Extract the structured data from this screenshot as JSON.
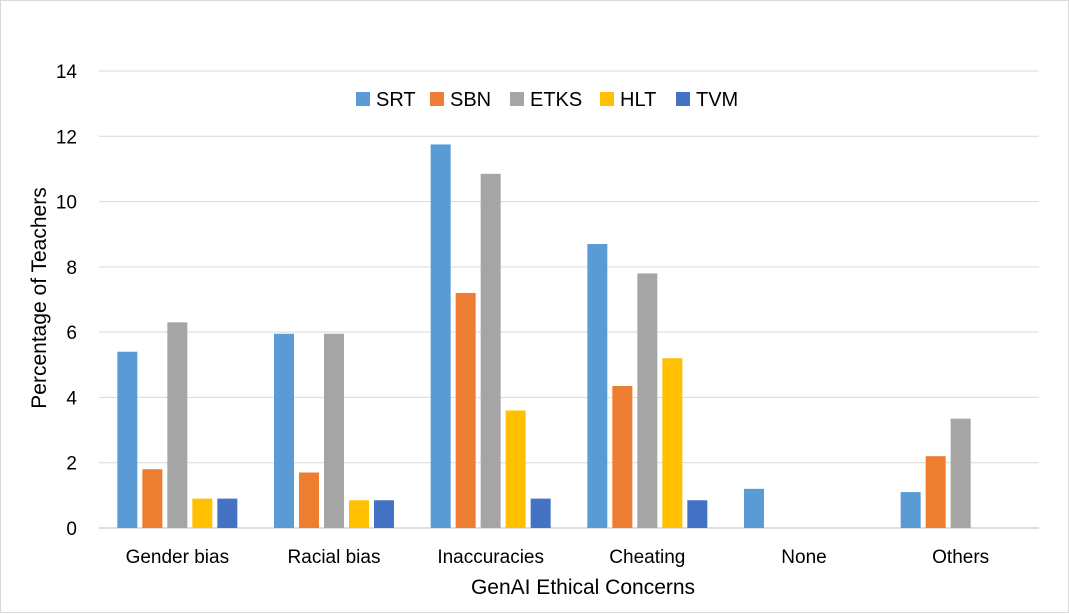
{
  "chart_data": {
    "type": "bar",
    "title": "",
    "xlabel": "GenAI Ethical Concerns",
    "ylabel": "Percentage of Teachers",
    "ylim": [
      0,
      14
    ],
    "yticks": [
      0,
      2,
      4,
      6,
      8,
      10,
      12,
      14
    ],
    "grid": true,
    "legend_position": "top",
    "categories": [
      "Gender bias",
      "Racial bias",
      "Inaccuracies",
      "Cheating",
      "None",
      "Others"
    ],
    "series": [
      {
        "name": "SRT",
        "color": "#5b9bd5",
        "values": [
          5.4,
          5.95,
          11.75,
          8.7,
          1.2,
          1.1
        ]
      },
      {
        "name": "SBN",
        "color": "#ed7d31",
        "values": [
          1.8,
          1.7,
          7.2,
          4.35,
          null,
          2.2
        ]
      },
      {
        "name": "ETKS",
        "color": "#a5a5a5",
        "values": [
          6.3,
          5.95,
          10.85,
          7.8,
          null,
          3.35
        ]
      },
      {
        "name": "HLT",
        "color": "#ffc000",
        "values": [
          0.9,
          0.85,
          3.6,
          5.2,
          null,
          null
        ]
      },
      {
        "name": "TVM",
        "color": "#4472c4",
        "values": [
          0.9,
          0.85,
          0.9,
          0.85,
          null,
          null
        ]
      }
    ]
  }
}
